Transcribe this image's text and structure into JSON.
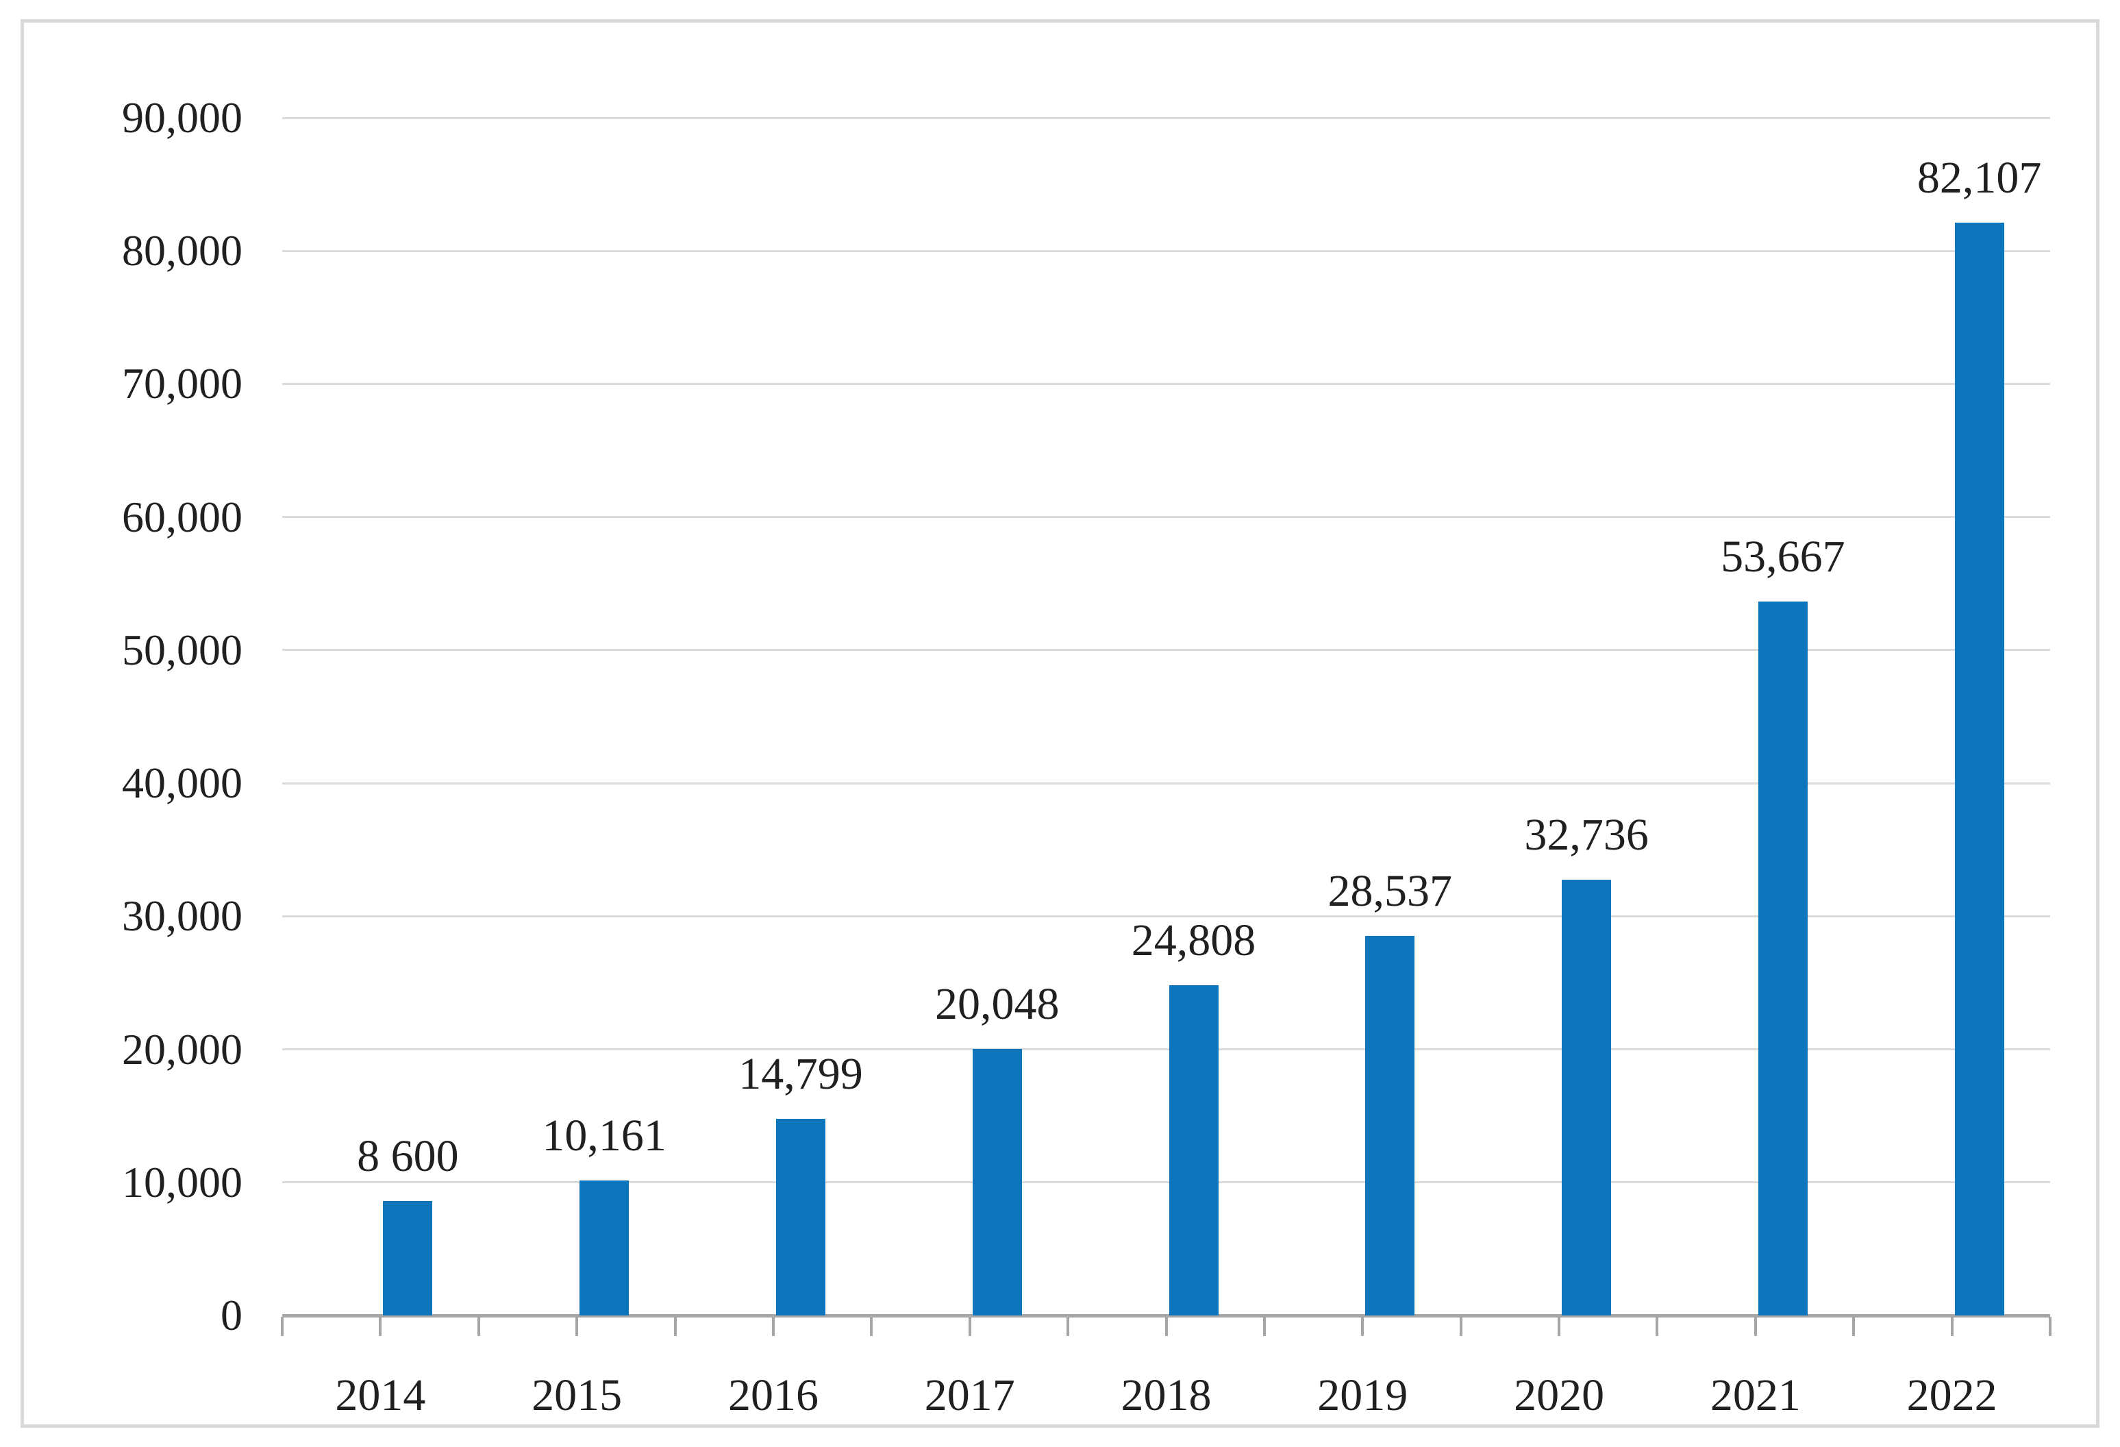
{
  "figure": {
    "title": "",
    "description_visible_text_only": true
  },
  "chart_data": {
    "type": "bar",
    "title": "",
    "xlabel": "",
    "ylabel": "",
    "categories": [
      "2014",
      "2015",
      "2016",
      "2017",
      "2018",
      "2019",
      "2020",
      "2021",
      "2022"
    ],
    "values": [
      8600,
      10161,
      14799,
      20048,
      24808,
      28537,
      32736,
      53667,
      82107
    ],
    "data_labels": [
      "8 600",
      "10,161",
      "14,799",
      "20,048",
      "24,808",
      "28,537",
      "32,736",
      "53,667",
      "82,107"
    ],
    "series": [
      {
        "name": "",
        "values": [
          8600,
          10161,
          14799,
          20048,
          24808,
          28537,
          32736,
          53667,
          82107
        ]
      }
    ],
    "y_axis": {
      "min": 0,
      "max": 90000,
      "step": 10000,
      "tick_labels": [
        "0",
        "10,000",
        "20,000",
        "30,000",
        "40,000",
        "50,000",
        "60,000",
        "70,000",
        "80,000",
        "90,000"
      ]
    },
    "grid": true,
    "legend": false,
    "colors": {
      "bar": "#0C75BB",
      "gridline": "#DBDBDB",
      "axis_line": "#A6A6A6",
      "tick": "#A6A6A6",
      "text": "#202020",
      "frame_border": "#D9D9D9",
      "background": "#FFFFFF"
    }
  }
}
